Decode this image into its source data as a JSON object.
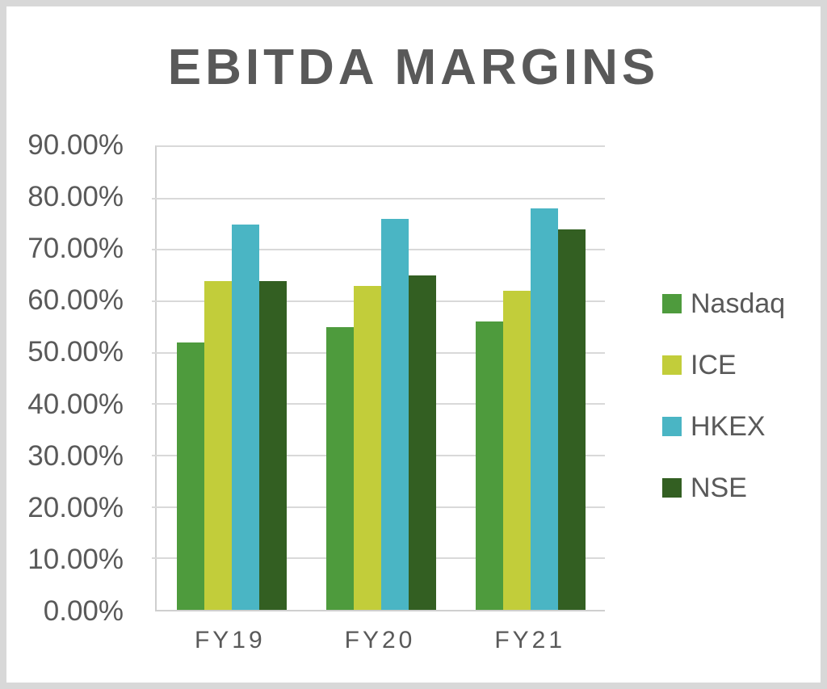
{
  "frame": {
    "background_color": "#ffffff",
    "border_color": "#d8d8d8"
  },
  "chart_data": {
    "type": "bar",
    "title": "EBITDA MARGINS",
    "categories": [
      "FY19",
      "FY20",
      "FY21"
    ],
    "series": [
      {
        "name": "Nasdaq",
        "color": "#4e9b3d",
        "values": [
          52,
          55,
          56
        ]
      },
      {
        "name": "ICE",
        "color": "#c2cd3a",
        "values": [
          64,
          63,
          62
        ]
      },
      {
        "name": "HKEX",
        "color": "#4ab5c4",
        "values": [
          75,
          76,
          78
        ]
      },
      {
        "name": "NSE",
        "color": "#335f22",
        "values": [
          64,
          65,
          74
        ]
      }
    ],
    "unit": "percent",
    "y_axis": {
      "min": 0,
      "max": 90,
      "step": 10,
      "tick_labels": [
        "90.00%",
        "80.00%",
        "70.00%",
        "60.00%",
        "50.00%",
        "40.00%",
        "30.00%",
        "20.00%",
        "10.00%",
        "0.00%"
      ]
    },
    "x_tick_labels": [
      "FY19",
      "FY20",
      "FY21"
    ],
    "legend": {
      "position": "right",
      "entries": [
        "Nasdaq",
        "ICE",
        "HKEX",
        "NSE"
      ]
    },
    "grid": true,
    "styles": {
      "text_color": "#595959",
      "gridline_color": "#d9d9d9",
      "axis_color": "#cfcfcf"
    }
  }
}
